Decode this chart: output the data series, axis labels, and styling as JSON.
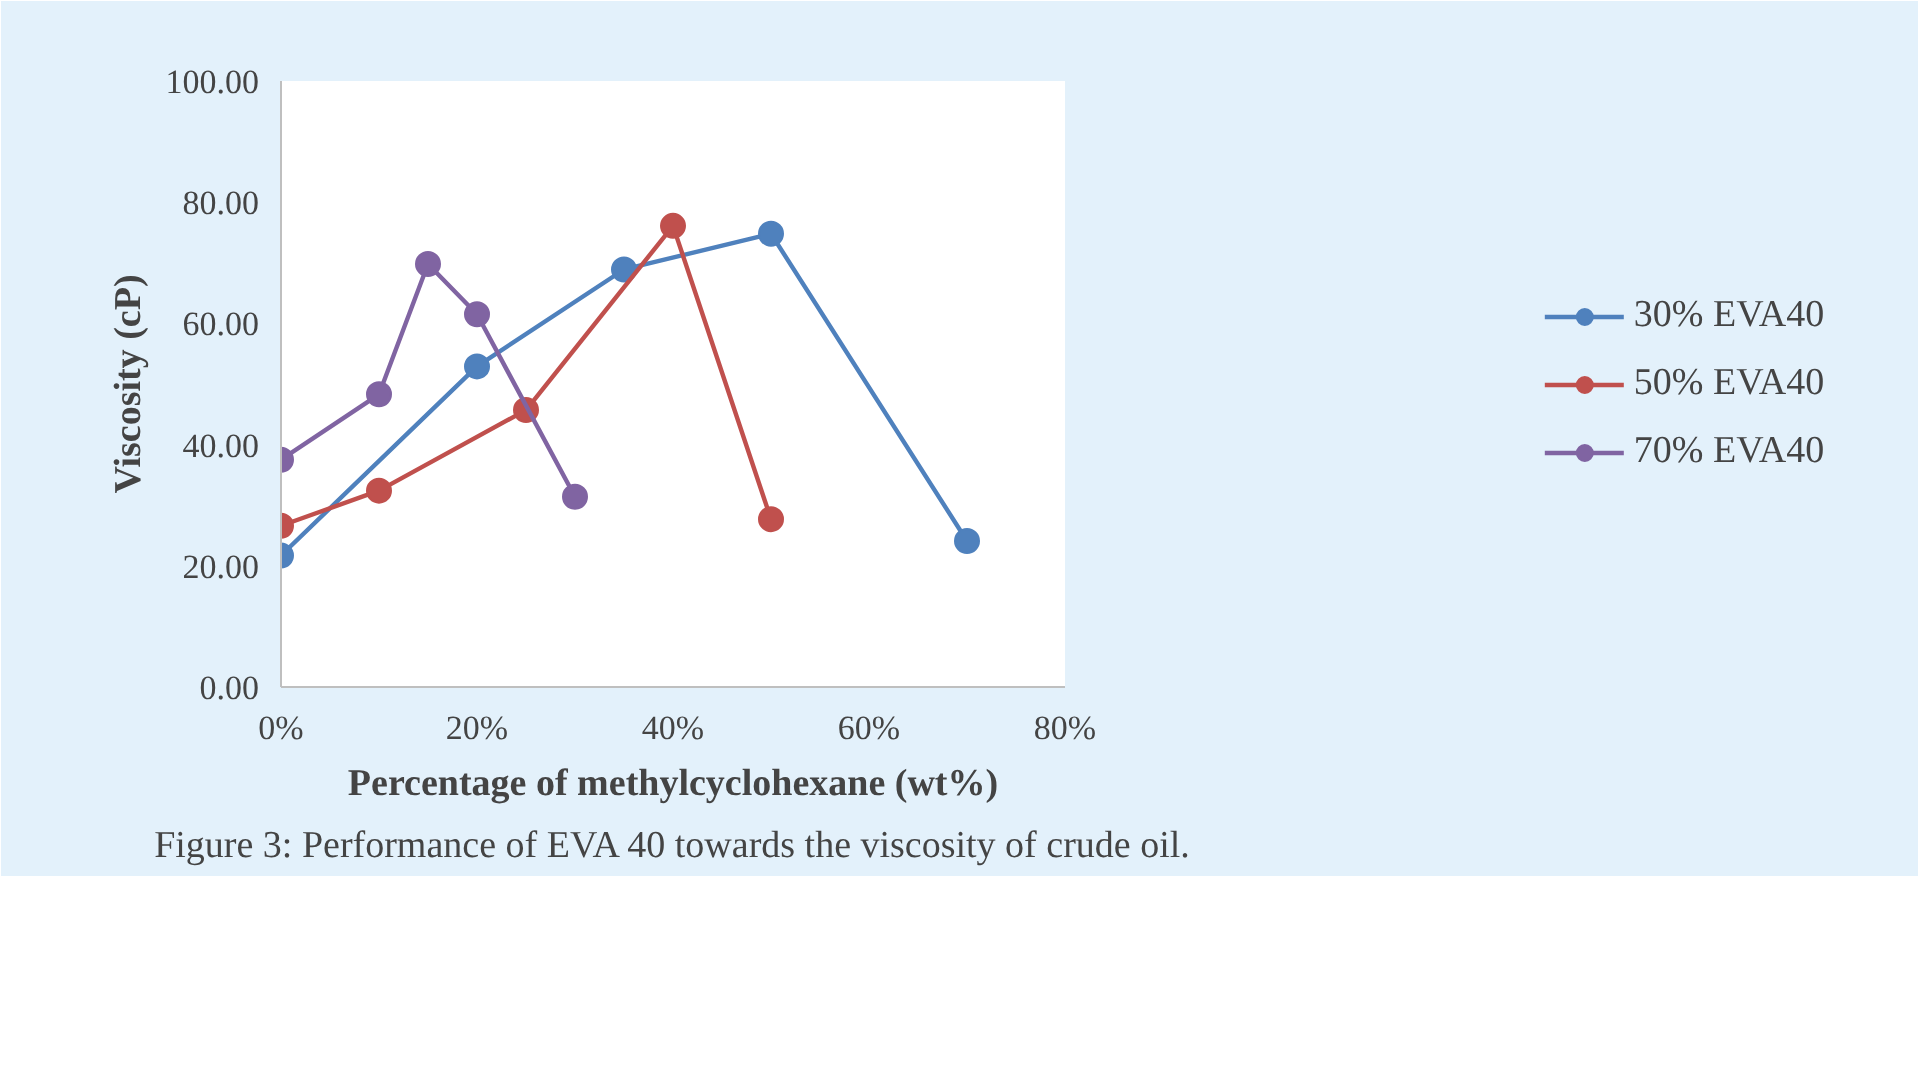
{
  "chart_data": {
    "type": "line",
    "xlabel": "Percentage of methylcyclohexane (wt%)",
    "ylabel": "Viscosity (cP)",
    "annotations": [
      "Figure 3: Performance of EVA 40 towards the viscosity of crude oil."
    ],
    "xlim": [
      0,
      80
    ],
    "xticks": [
      {
        "value": 0,
        "label": "0%"
      },
      {
        "value": 20,
        "label": "20%"
      },
      {
        "value": 40,
        "label": "40%"
      },
      {
        "value": 60,
        "label": "60%"
      },
      {
        "value": 80,
        "label": "80%"
      }
    ],
    "ylim": [
      0,
      100
    ],
    "yticks": [
      {
        "value": 0,
        "label": "0.00"
      },
      {
        "value": 20,
        "label": "20.00"
      },
      {
        "value": 40,
        "label": "40.00"
      },
      {
        "value": 60,
        "label": "60.00"
      },
      {
        "value": 80,
        "label": "80.00"
      },
      {
        "value": 100,
        "label": "100.00"
      }
    ],
    "grid": false,
    "legend": "right",
    "marker": "circle",
    "line_style": "solid",
    "series": [
      {
        "name": "30% EVA40",
        "color": "#4f81bd",
        "x": [
          0,
          20,
          35,
          50,
          70
        ],
        "values": [
          21.7,
          52.9,
          68.9,
          74.8,
          24.1
        ]
      },
      {
        "name": "50% EVA40",
        "color": "#c0504d",
        "x": [
          0,
          10,
          25,
          40,
          50
        ],
        "values": [
          26.6,
          32.4,
          45.7,
          76.1,
          27.7
        ]
      },
      {
        "name": "70% EVA40",
        "color": "#8064a2",
        "x": [
          0,
          10,
          15,
          20,
          30
        ],
        "values": [
          37.5,
          48.3,
          69.8,
          61.5,
          31.4
        ]
      }
    ]
  }
}
